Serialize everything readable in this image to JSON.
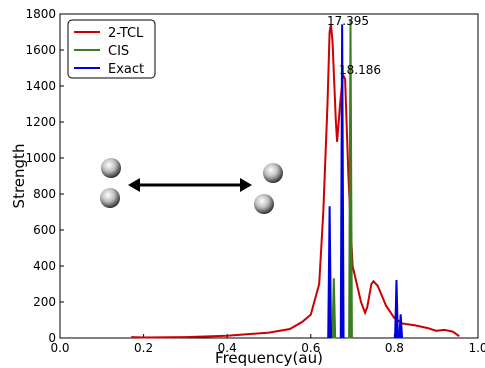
{
  "chart_data": {
    "type": "line",
    "x_label": "Frequency(au)",
    "y_label": "Strength",
    "xlim": [
      0,
      1
    ],
    "ylim": [
      0,
      1800
    ],
    "xticks": [
      {
        "value": 0,
        "label": "0.0"
      },
      0.2,
      0.4,
      0.6,
      0.8,
      {
        "value": 1,
        "label": "1.0"
      }
    ],
    "yticks": [
      0,
      200,
      400,
      600,
      800,
      1000,
      1200,
      1400,
      1600,
      1800
    ],
    "legend": "upper left",
    "annotations": [
      "17.395",
      "18.186"
    ],
    "series": [
      {
        "name": "2-TCL",
        "color": "#cc0000",
        "style": "line",
        "x": [
          0.17,
          0.2,
          0.3,
          0.4,
          0.5,
          0.55,
          0.58,
          0.6,
          0.62,
          0.63,
          0.64,
          0.645,
          0.648,
          0.652,
          0.66,
          0.663,
          0.67,
          0.677,
          0.682,
          0.69,
          0.7,
          0.72,
          0.73,
          0.735,
          0.745,
          0.75,
          0.76,
          0.78,
          0.8,
          0.82,
          0.85,
          0.88,
          0.9,
          0.92,
          0.94,
          0.955
        ],
        "values": [
          5,
          3,
          5,
          12,
          30,
          50,
          90,
          130,
          300,
          700,
          1300,
          1700,
          1740,
          1650,
          1200,
          1090,
          1300,
          1460,
          1440,
          900,
          400,
          200,
          140,
          170,
          300,
          315,
          290,
          180,
          110,
          80,
          70,
          55,
          40,
          45,
          35,
          10
        ]
      },
      {
        "name": "CIS",
        "color": "#3a7d22",
        "style": "stick",
        "x": [
          0.655,
          0.695
        ],
        "values": [
          330,
          1760
        ]
      },
      {
        "name": "Exact",
        "color": "#0000dd",
        "style": "stick",
        "x": [
          0.645,
          0.675,
          0.805,
          0.815
        ],
        "values": [
          730,
          1740,
          320,
          130
        ]
      }
    ]
  }
}
